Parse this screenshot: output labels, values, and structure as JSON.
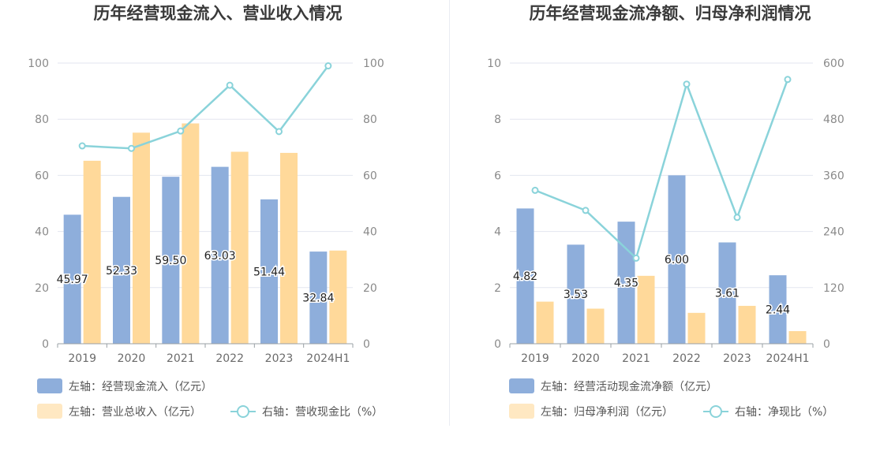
{
  "colors": {
    "bar_primary": "#8eaedb",
    "bar_secondary": "#ffd99a",
    "bar_secondary_legend": "#ffe8c2",
    "line": "#8ad3da",
    "grid": "#e3e6ef",
    "axis": "#9aa0a6"
  },
  "chart_data": [
    {
      "type": "bar",
      "title": "历年经营现金流入、营业收入情况",
      "categories": [
        "2019",
        "2020",
        "2021",
        "2022",
        "2023",
        "2024H1"
      ],
      "left_axis": {
        "ylim": [
          0,
          100
        ],
        "ticks": [
          "0",
          "20",
          "40",
          "60",
          "80",
          "100"
        ]
      },
      "right_axis": {
        "ylim": [
          0,
          100
        ],
        "ticks": [
          "0",
          "20",
          "40",
          "60",
          "80",
          "100"
        ]
      },
      "series": [
        {
          "name": "左轴：经营现金流入（亿元）",
          "type": "bar",
          "axis": "left",
          "values": [
            45.97,
            52.33,
            59.5,
            63.03,
            51.44,
            32.84
          ],
          "labels": [
            "45.97",
            "52.33",
            "59.50",
            "63.03",
            "51.44",
            "32.84"
          ]
        },
        {
          "name": "左轴：营业总收入（亿元）",
          "type": "bar",
          "axis": "left",
          "values": [
            65.2,
            75.2,
            78.5,
            68.4,
            68.0,
            33.2
          ]
        },
        {
          "name": "右轴：营收现金比（%）",
          "type": "line",
          "axis": "right",
          "values": [
            70.5,
            69.6,
            75.8,
            92.1,
            75.6,
            99.0
          ]
        }
      ]
    },
    {
      "type": "bar",
      "title": "历年经营现金流净额、归母净利润情况",
      "categories": [
        "2019",
        "2020",
        "2021",
        "2022",
        "2023",
        "2024H1"
      ],
      "left_axis": {
        "ylim": [
          0,
          10
        ],
        "ticks": [
          "0",
          "2",
          "4",
          "6",
          "8",
          "10"
        ]
      },
      "right_axis": {
        "ylim": [
          0,
          600
        ],
        "ticks": [
          "0",
          "120",
          "240",
          "360",
          "480",
          "600"
        ]
      },
      "series": [
        {
          "name": "左轴：经营活动现金流净额（亿元）",
          "type": "bar",
          "axis": "left",
          "values": [
            4.82,
            3.53,
            4.35,
            6.0,
            3.61,
            2.44
          ],
          "labels": [
            "4.82",
            "3.53",
            "4.35",
            "6.00",
            "3.61",
            "2.44"
          ]
        },
        {
          "name": "左轴：归母净利润（亿元）",
          "type": "bar",
          "axis": "left",
          "values": [
            1.5,
            1.25,
            2.42,
            1.1,
            1.35,
            0.45
          ]
        },
        {
          "name": "右轴：净现比（%）",
          "type": "line",
          "axis": "right",
          "values": [
            328,
            285,
            183,
            555,
            270,
            565
          ]
        }
      ]
    }
  ]
}
